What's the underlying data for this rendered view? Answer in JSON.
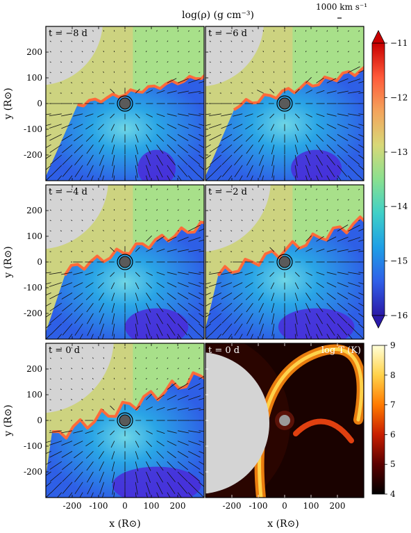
{
  "figure": {
    "colorbar_label": "log(ρ) (g cm⁻³)",
    "velocity_key_label": "1000 km s⁻¹",
    "temperature_label": "log T (K)",
    "x_axis_label": "x (R⊙)",
    "y_axis_label": "y (R⊙)"
  },
  "panels": [
    {
      "label": "t = −8 d",
      "kind": "density",
      "front": 0.45,
      "front_tilt": 0.35
    },
    {
      "label": "t = −6 d",
      "kind": "density",
      "front": 0.4,
      "front_tilt": 0.45
    },
    {
      "label": "t = −4 d",
      "kind": "density",
      "front": 0.25,
      "front_tilt": 0.55
    },
    {
      "label": "t = −2 d",
      "kind": "density",
      "front": 0.15,
      "front_tilt": 0.65
    },
    {
      "label": "t = 0 d",
      "kind": "density",
      "front": 0.05,
      "front_tilt": 0.75
    },
    {
      "label": "t = 0 d",
      "kind": "temperature"
    }
  ],
  "chart_data": [
    {
      "type": "heatmap",
      "title": "log(ρ) (g cm⁻³)",
      "xlabel": "x (R⊙)",
      "ylabel": "y (R⊙)",
      "xlim": [
        -300,
        300
      ],
      "ylim": [
        -300,
        300
      ],
      "x_ticks": [
        -200,
        -100,
        0,
        100,
        200
      ],
      "y_ticks": [
        200,
        100,
        0,
        -100,
        -200
      ],
      "colorbar": {
        "min": -16,
        "max": -11,
        "ticks": [
          -11,
          -12,
          -13,
          -14,
          -15,
          -16
        ]
      }
    },
    {
      "type": "heatmap",
      "title": "log T (K)",
      "colorbar": {
        "min": 4,
        "max": 9,
        "ticks": [
          9,
          8,
          7,
          6,
          5,
          4
        ]
      }
    }
  ],
  "colors": {
    "density_map": [
      "#2a1aa8",
      "#2f5fe8",
      "#1e9fe6",
      "#3fd0c8",
      "#8ae08f",
      "#d8d878",
      "#f3a45c",
      "#ff5a3a",
      "#c80000"
    ],
    "temperature_map": [
      "#000000",
      "#5a0000",
      "#c81e00",
      "#ff7a00",
      "#ffd24a",
      "#ffffd8"
    ],
    "companion": "#d4d4d4",
    "star": "#5a5a5a"
  }
}
